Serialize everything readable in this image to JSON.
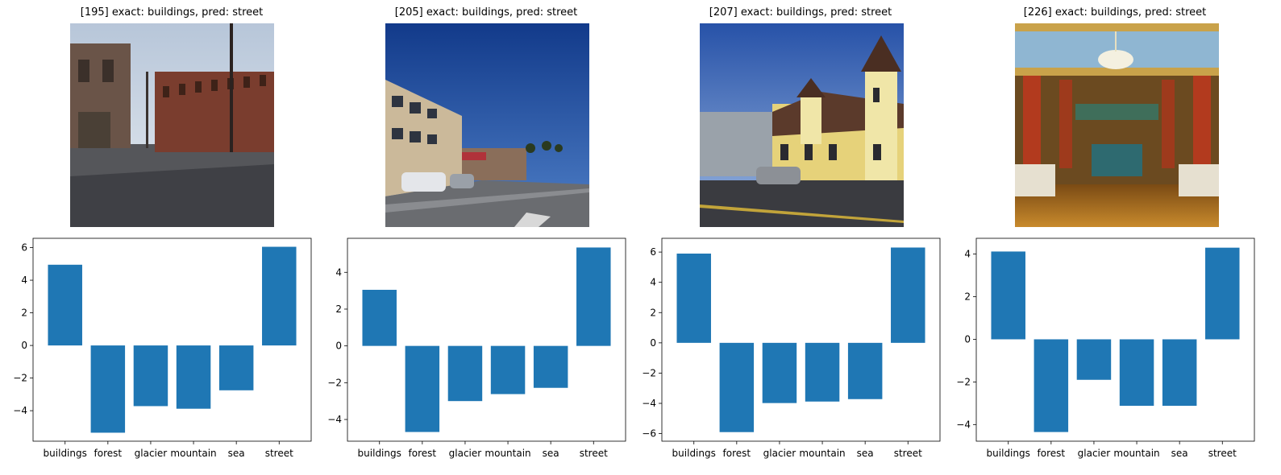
{
  "panels": [
    {
      "title": "[195] exact: buildings, pred: street"
    },
    {
      "title": "[205] exact: buildings, pred: street"
    },
    {
      "title": "[207] exact: buildings, pred: street"
    },
    {
      "title": "[226] exact: buildings, pred: street"
    }
  ],
  "colors": {
    "bar": "#1f77b4"
  },
  "chart_data": [
    {
      "type": "bar",
      "categories": [
        "buildings",
        "forest",
        "glacier",
        "mountain",
        "sea",
        "street"
      ],
      "values": [
        4.95,
        -5.35,
        -3.72,
        -3.88,
        -2.75,
        6.05
      ],
      "ylim": [
        -5.87,
        6.57
      ],
      "yticks": [
        6,
        4,
        2,
        0,
        -2,
        -4
      ],
      "ytick_labels": [
        "6",
        "4",
        "2",
        "0",
        "−2",
        "−4"
      ],
      "grid": false
    },
    {
      "type": "bar",
      "categories": [
        "buildings",
        "forest",
        "glacier",
        "mountain",
        "sea",
        "street"
      ],
      "values": [
        3.05,
        -4.68,
        -3.0,
        -2.62,
        -2.28,
        5.35
      ],
      "ylim": [
        -5.18,
        5.85
      ],
      "yticks": [
        4,
        2,
        0,
        -2,
        -4
      ],
      "ytick_labels": [
        "4",
        "2",
        "0",
        "−2",
        "−4"
      ],
      "grid": false
    },
    {
      "type": "bar",
      "categories": [
        "buildings",
        "forest",
        "glacier",
        "mountain",
        "sea",
        "street"
      ],
      "values": [
        5.9,
        -5.9,
        -3.98,
        -3.88,
        -3.72,
        6.3
      ],
      "ylim": [
        -6.5,
        6.91
      ],
      "yticks": [
        6,
        4,
        2,
        0,
        -2,
        -4,
        -6
      ],
      "ytick_labels": [
        "6",
        "4",
        "2",
        "0",
        "−2",
        "−4",
        "−6"
      ],
      "grid": false
    },
    {
      "type": "bar",
      "categories": [
        "buildings",
        "forest",
        "glacier",
        "mountain",
        "sea",
        "street"
      ],
      "values": [
        4.12,
        -4.35,
        -1.9,
        -3.12,
        -3.12,
        4.3
      ],
      "ylim": [
        -4.78,
        4.74
      ],
      "yticks": [
        4,
        2,
        0,
        -2,
        -4
      ],
      "ytick_labels": [
        "4",
        "2",
        "0",
        "−2",
        "−4"
      ],
      "grid": false
    }
  ]
}
